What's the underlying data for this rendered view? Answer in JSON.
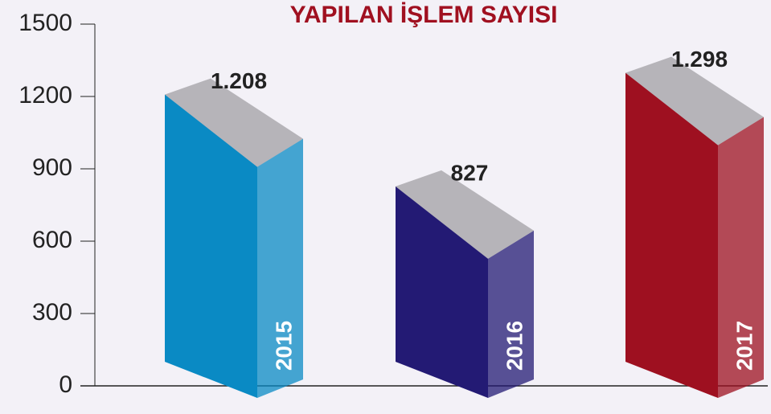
{
  "chart_data": {
    "type": "bar",
    "title": "YAPILAN İŞLEM SAYISI",
    "categories": [
      "2015",
      "2016",
      "2017"
    ],
    "values": [
      1208,
      827,
      1298
    ],
    "value_labels": [
      "1.208",
      "827",
      "1.298"
    ],
    "colors": [
      "#0a8ac4",
      "#231a74",
      "#9e1020"
    ],
    "ylim": [
      0,
      1500
    ],
    "yticks": [
      0,
      300,
      600,
      900,
      1200,
      1500
    ]
  }
}
